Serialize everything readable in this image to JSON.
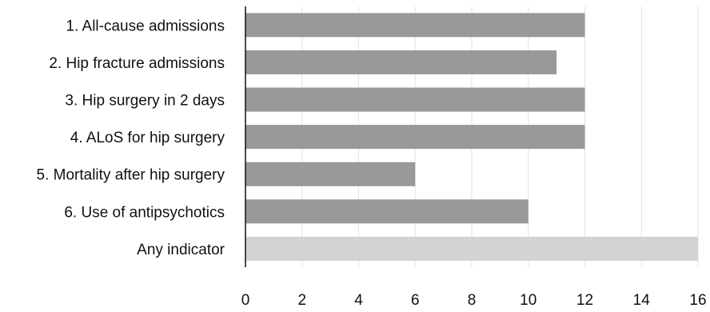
{
  "chart_data": {
    "type": "bar",
    "orientation": "horizontal",
    "categories": [
      "1. All-cause admissions",
      "2. Hip fracture admissions",
      "3. Hip surgery in 2 days",
      "4. ALoS for hip surgery",
      "5. Mortality after hip surgery",
      "6. Use of antipsychotics",
      "Any indicator"
    ],
    "values": [
      12,
      11,
      12,
      12,
      6,
      10,
      16
    ],
    "bar_colors": [
      "#999999",
      "#999999",
      "#999999",
      "#999999",
      "#999999",
      "#999999",
      "#d3d3d3"
    ],
    "xlim": [
      0,
      16
    ],
    "xticks": [
      "0",
      "2",
      "4",
      "6",
      "8",
      "10",
      "12",
      "14",
      "16"
    ],
    "grid": "vertical",
    "title": "",
    "xlabel": "",
    "ylabel": ""
  }
}
